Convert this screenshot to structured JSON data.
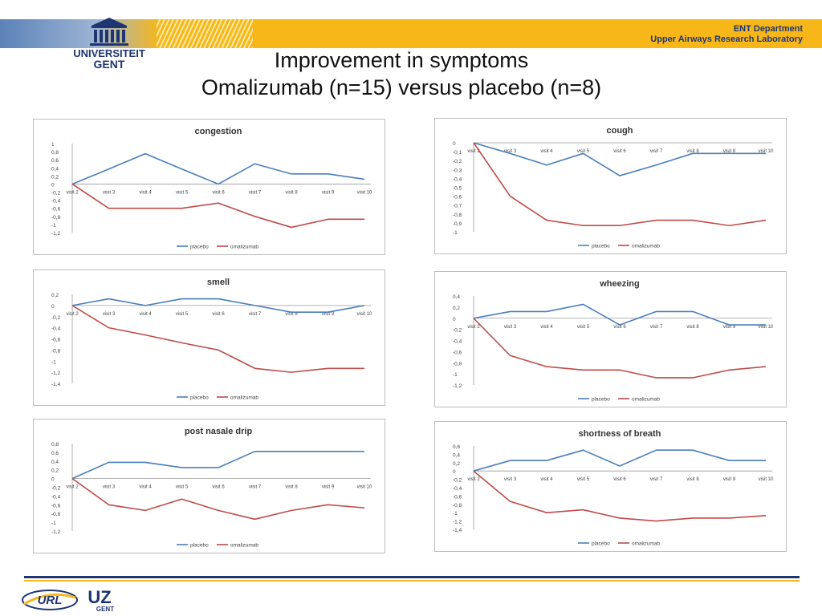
{
  "header": {
    "department": "ENT Department",
    "lab": "Upper Airways Research Laboratory",
    "university_line1": "UNIVERSITEIT",
    "university_line2": "GENT"
  },
  "slide": {
    "title_line1": "Improvement in symptoms",
    "title_line2": "Omalizumab (n=15) versus placebo (n=8)"
  },
  "footer": {
    "logo_left": "URL",
    "logo_right": "UZ",
    "logo_right_sub": "GENT"
  },
  "colors": {
    "placebo": "#4a7ebb",
    "omalizumab": "#be4b48",
    "header_band": "#f7b718",
    "brand_blue": "#1e3572"
  },
  "chart_data": [
    {
      "type": "line",
      "title": "congestion",
      "categories": [
        "visit 2",
        "visit 3",
        "visit 4",
        "visit 5",
        "visit 6",
        "visit 7",
        "visit 8",
        "visit 9",
        "visit 10"
      ],
      "series": [
        {
          "name": "placebo",
          "values": [
            0,
            0.37,
            0.75,
            0.37,
            0,
            0.5,
            0.25,
            0.25,
            0.12
          ]
        },
        {
          "name": "omalizumab",
          "values": [
            0,
            -0.6,
            -0.6,
            -0.6,
            -0.47,
            -0.8,
            -1.07,
            -0.87,
            -0.87
          ]
        }
      ],
      "ylim": [
        -1.2,
        1
      ],
      "yticks": [
        "1",
        "0,8",
        "0,6",
        "0,4",
        "0,2",
        "0",
        "-0,2",
        "-0,4",
        "-0,6",
        "-0,8",
        "-1",
        "-1,2"
      ],
      "legend": "bottom"
    },
    {
      "type": "line",
      "title": "cough",
      "categories": [
        "visit 2",
        "visit 3",
        "visit 4",
        "visit 5",
        "visit 6",
        "visit 7",
        "visit 8",
        "visit 9",
        "visit 10"
      ],
      "series": [
        {
          "name": "placebo",
          "values": [
            0,
            -0.12,
            -0.25,
            -0.12,
            -0.37,
            -0.25,
            -0.12,
            -0.12,
            -0.12
          ]
        },
        {
          "name": "omalizumab",
          "values": [
            0,
            -0.6,
            -0.87,
            -0.93,
            -0.93,
            -0.87,
            -0.87,
            -0.93,
            -0.87
          ]
        }
      ],
      "ylim": [
        -1,
        0
      ],
      "yticks": [
        "0",
        "-0,1",
        "-0,2",
        "-0,3",
        "-0,4",
        "-0,5",
        "-0,6",
        "-0,7",
        "-0,8",
        "-0,9",
        "-1"
      ],
      "legend": "bottom"
    },
    {
      "type": "line",
      "title": "smell",
      "categories": [
        "visit 2",
        "visit 3",
        "visit 4",
        "visit 5",
        "visit 6",
        "visit 7",
        "visit 8",
        "visit 9",
        "visit 10"
      ],
      "series": [
        {
          "name": "placebo",
          "values": [
            0,
            0.12,
            0,
            0.12,
            0.12,
            0,
            -0.12,
            -0.12,
            0
          ]
        },
        {
          "name": "omalizumab",
          "values": [
            0,
            -0.4,
            -0.53,
            -0.67,
            -0.8,
            -1.13,
            -1.2,
            -1.13,
            -1.13
          ]
        }
      ],
      "ylim": [
        -1.4,
        0.2
      ],
      "yticks": [
        "0,2",
        "0",
        "-0,2",
        "-0,4",
        "-0,6",
        "-0,8",
        "-1",
        "-1,2",
        "-1,4"
      ],
      "legend": "bottom"
    },
    {
      "type": "line",
      "title": "wheezing",
      "categories": [
        "visit 2",
        "visit 3",
        "visit 4",
        "visit 5",
        "visit 6",
        "visit 7",
        "visit 8",
        "visit 9",
        "visit 10"
      ],
      "series": [
        {
          "name": "placebo",
          "values": [
            0,
            0.12,
            0.12,
            0.25,
            -0.12,
            0.12,
            0.12,
            -0.12,
            -0.12
          ]
        },
        {
          "name": "omalizumab",
          "values": [
            0,
            -0.67,
            -0.87,
            -0.93,
            -0.93,
            -1.07,
            -1.07,
            -0.93,
            -0.87
          ]
        }
      ],
      "ylim": [
        -1.2,
        0.4
      ],
      "yticks": [
        "0,4",
        "0,2",
        "0",
        "-0,2",
        "-0,4",
        "-0,6",
        "-0,8",
        "-1",
        "-1,2"
      ],
      "legend": "bottom"
    },
    {
      "type": "line",
      "title": "post nasale drip",
      "categories": [
        "visit 2",
        "visit 3",
        "visit 4",
        "visit 5",
        "visit 6",
        "visit 7",
        "visit 8",
        "visit 9",
        "visit 10"
      ],
      "series": [
        {
          "name": "placebo",
          "values": [
            0,
            0.37,
            0.37,
            0.25,
            0.25,
            0.62,
            0.62,
            0.62,
            0.62
          ]
        },
        {
          "name": "omalizumab",
          "values": [
            0,
            -0.6,
            -0.73,
            -0.47,
            -0.73,
            -0.93,
            -0.73,
            -0.6,
            -0.67
          ]
        }
      ],
      "ylim": [
        -1.2,
        0.8
      ],
      "yticks": [
        "0,8",
        "0,6",
        "0,4",
        "0,2",
        "0",
        "-0,2",
        "-0,4",
        "-0,6",
        "-0,8",
        "-1",
        "-1,2"
      ],
      "legend": "bottom"
    },
    {
      "type": "line",
      "title": "shortness of breath",
      "categories": [
        "visit 2",
        "visit 3",
        "visit 4",
        "visit 5",
        "visit 6",
        "visit 7",
        "visit 8",
        "visit 9",
        "visit 10"
      ],
      "series": [
        {
          "name": "placebo",
          "values": [
            0,
            0.25,
            0.25,
            0.5,
            0.12,
            0.5,
            0.5,
            0.25,
            0.25
          ]
        },
        {
          "name": "omalizumab",
          "values": [
            0,
            -0.73,
            -1,
            -0.93,
            -1.13,
            -1.2,
            -1.13,
            -1.13,
            -1.07
          ]
        }
      ],
      "ylim": [
        -1.4,
        0.6
      ],
      "yticks": [
        "0,6",
        "0,4",
        "0,2",
        "0",
        "-0,2",
        "-0,4",
        "-0,6",
        "-0,8",
        "-1",
        "-1,2",
        "-1,4"
      ],
      "legend": "bottom"
    }
  ]
}
